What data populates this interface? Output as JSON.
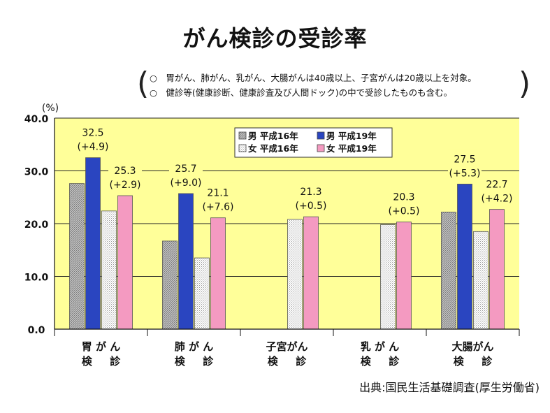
{
  "title": "がん検診の受診率",
  "notes": [
    "○　胃がん、肺がん、乳がん、大腸がんは40歳以上、子宮がんは20歳以上を対象。",
    "○　健診等(健康診断、健康診査及び人間ドック)の中で受診したものも含む。"
  ],
  "source": "出典:国民生活基礎調査(厚生労働省)",
  "colors": {
    "background": "#ffff99",
    "male_h16": "#b0b0b0",
    "male_h19": "#2a45c0",
    "female_h16": "#ffffff",
    "female_h19": "#f49ac1"
  },
  "chart_data": {
    "type": "bar",
    "unit_label": "(%)",
    "ylim": [
      0,
      40
    ],
    "yticks": [
      0,
      10,
      20,
      30,
      40
    ],
    "ytick_labels": [
      "0.0",
      "10.0",
      "20.0",
      "30.0",
      "40.0"
    ],
    "grid": true,
    "legend_position": "top-center",
    "categories": [
      {
        "line1": "胃 が ん",
        "line2": "検 　 診"
      },
      {
        "line1": "肺 が ん",
        "line2": "検 　 診"
      },
      {
        "line1": "子宮がん",
        "line2": "検 　 診"
      },
      {
        "line1": "乳 が ん",
        "line2": "検 　 診"
      },
      {
        "line1": "大腸がん",
        "line2": "検 　 診"
      }
    ],
    "series": [
      {
        "name": "男 平成16年",
        "key": "male_h16",
        "values": [
          27.6,
          16.7,
          null,
          null,
          22.2
        ]
      },
      {
        "name": "男 平成19年",
        "key": "male_h19",
        "values": [
          32.5,
          25.7,
          null,
          null,
          27.5
        ]
      },
      {
        "name": "女 平成16年",
        "key": "female_h16",
        "values": [
          22.4,
          13.5,
          20.8,
          19.8,
          18.5
        ]
      },
      {
        "name": "女 平成19年",
        "key": "female_h19",
        "values": [
          25.3,
          21.1,
          21.3,
          20.3,
          22.7
        ]
      }
    ],
    "annotations": [
      {
        "category": 0,
        "series": 1,
        "value": "32.5",
        "change": "(+4.9)"
      },
      {
        "category": 0,
        "series": 3,
        "value": "25.3",
        "change": "(+2.9)"
      },
      {
        "category": 1,
        "series": 1,
        "value": "25.7",
        "change": "(+9.0)"
      },
      {
        "category": 1,
        "series": 3,
        "value": "21.1",
        "change": "(+7.6)"
      },
      {
        "category": 2,
        "series": 3,
        "value": "21.3",
        "change": "(+0.5)"
      },
      {
        "category": 3,
        "series": 3,
        "value": "20.3",
        "change": "(+0.5)"
      },
      {
        "category": 4,
        "series": 1,
        "value": "27.5",
        "change": "(+5.3)"
      },
      {
        "category": 4,
        "series": 3,
        "value": "22.7",
        "change": "(+4.2)"
      }
    ]
  }
}
